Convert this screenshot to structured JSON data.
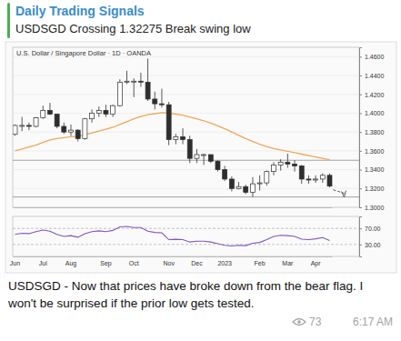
{
  "post": {
    "channel": "Daily Trading Signals",
    "headline": "USDSGD Crossing 1.32275 Break swing low",
    "caption": [
      "USDSGD - Now that prices have broke down from the bear flag. I",
      "won't be surprised if the prior low gets tested."
    ],
    "views": 73,
    "time": "6:17 AM"
  },
  "chart_data": [
    {
      "type": "candlestick",
      "title": "U.S. Dollar / Singapore Dollar · 1D · OANDA",
      "categories": [
        "Jun",
        null,
        null,
        null,
        "Jul",
        null,
        null,
        null,
        "Aug",
        null,
        null,
        null,
        null,
        "Sep",
        null,
        null,
        null,
        "Oct",
        null,
        null,
        null,
        null,
        "Nov",
        null,
        null,
        null,
        "Dec",
        null,
        null,
        null,
        "2023",
        null,
        null,
        null,
        null,
        "Feb",
        null,
        null,
        null,
        "Mar",
        null,
        null,
        null,
        "Apr",
        null,
        null
      ],
      "open": [
        1.3775,
        1.387,
        1.387,
        1.386,
        1.395,
        1.403,
        1.399,
        1.386,
        1.38,
        1.382,
        1.373,
        1.394,
        1.4,
        1.403,
        1.399,
        1.408,
        1.433,
        1.434,
        1.434,
        1.433,
        1.415,
        1.41,
        1.409,
        1.372,
        1.375,
        1.372,
        1.352,
        1.356,
        1.356,
        1.349,
        1.34,
        1.33,
        1.32,
        1.322,
        1.316,
        1.325,
        1.326,
        1.338,
        1.345,
        1.348,
        1.346,
        1.344,
        1.33,
        1.329,
        1.33,
        1.334
      ],
      "high": [
        1.388,
        1.396,
        1.39,
        1.396,
        1.408,
        1.411,
        1.399,
        1.39,
        1.388,
        1.383,
        1.395,
        1.404,
        1.407,
        1.409,
        1.409,
        1.436,
        1.445,
        1.437,
        1.443,
        1.458,
        1.423,
        1.426,
        1.412,
        1.378,
        1.384,
        1.376,
        1.362,
        1.357,
        1.356,
        1.35,
        1.344,
        1.333,
        1.327,
        1.324,
        1.332,
        1.334,
        1.339,
        1.348,
        1.351,
        1.357,
        1.35,
        1.345,
        1.334,
        1.334,
        1.336,
        1.336
      ],
      "low": [
        1.376,
        1.381,
        1.382,
        1.385,
        1.394,
        1.398,
        1.384,
        1.378,
        1.376,
        1.37,
        1.372,
        1.39,
        1.396,
        1.396,
        1.396,
        1.407,
        1.431,
        1.417,
        1.428,
        1.413,
        1.404,
        1.406,
        1.366,
        1.367,
        1.367,
        1.347,
        1.347,
        1.345,
        1.347,
        1.338,
        1.328,
        1.317,
        1.319,
        1.314,
        1.311,
        1.318,
        1.323,
        1.334,
        1.339,
        1.342,
        1.338,
        1.325,
        1.325,
        1.326,
        1.326,
        1.321
      ],
      "close": [
        1.387,
        1.387,
        1.386,
        1.395,
        1.403,
        1.399,
        1.386,
        1.38,
        1.382,
        1.373,
        1.394,
        1.4,
        1.403,
        1.399,
        1.408,
        1.433,
        1.434,
        1.434,
        1.433,
        1.415,
        1.41,
        1.409,
        1.372,
        1.375,
        1.372,
        1.352,
        1.356,
        1.356,
        1.349,
        1.34,
        1.33,
        1.32,
        1.322,
        1.316,
        1.325,
        1.326,
        1.338,
        1.345,
        1.348,
        1.346,
        1.344,
        1.33,
        1.329,
        1.33,
        1.334,
        1.3225
      ],
      "color": "#2e2e2e",
      "series": [
        {
          "type": "line",
          "color": "#f2a65a",
          "values": [
            1.36,
            1.362,
            1.364,
            1.366,
            1.369,
            1.3715,
            1.373,
            1.374,
            1.375,
            1.3755,
            1.377,
            1.379,
            1.381,
            1.383,
            1.385,
            1.388,
            1.391,
            1.394,
            1.3965,
            1.3985,
            1.3995,
            1.4005,
            1.4,
            1.399,
            1.398,
            1.396,
            1.394,
            1.392,
            1.3895,
            1.3865,
            1.3835,
            1.38,
            1.3765,
            1.373,
            1.37,
            1.367,
            1.3645,
            1.3625,
            1.361,
            1.3595,
            1.358,
            1.3565,
            1.355,
            1.3535,
            1.352,
            1.3505
          ]
        }
      ],
      "levels": [
        1.35,
        1.311
      ],
      "ylim": [
        1.3,
        1.47
      ],
      "yticks": [
        {
          "value": 1.3,
          "label": "1.3000"
        },
        {
          "value": 1.32,
          "label": "1.3200"
        },
        {
          "value": 1.34,
          "label": "1.3400"
        },
        {
          "value": 1.36,
          "label": "1.3600"
        },
        {
          "value": 1.38,
          "label": "1.3800"
        },
        {
          "value": 1.4,
          "label": "1.4000"
        },
        {
          "value": 1.42,
          "label": "1.4200"
        },
        {
          "value": 1.44,
          "label": "1.4400"
        },
        {
          "value": 1.46,
          "label": "1.4600"
        }
      ],
      "grid": true,
      "tick_labels": "y"
    },
    {
      "type": "line",
      "categories": [
        "Jun",
        null,
        null,
        null,
        "Jul",
        null,
        null,
        null,
        "Aug",
        null,
        null,
        null,
        null,
        "Sep",
        null,
        null,
        null,
        "Oct",
        null,
        null,
        null,
        null,
        "Nov",
        null,
        null,
        null,
        "Dec",
        null,
        null,
        null,
        "2023",
        null,
        null,
        null,
        null,
        "Feb",
        null,
        null,
        null,
        "Mar",
        null,
        null,
        null,
        "Apr",
        null,
        null
      ],
      "series": [
        {
          "color": "#7e57c2",
          "values": [
            55,
            58,
            57,
            62,
            66,
            63,
            55,
            50,
            52,
            48,
            57,
            62,
            64,
            62,
            65,
            74,
            75,
            72,
            72,
            63,
            60,
            59,
            42,
            43,
            42,
            36,
            38,
            38,
            36,
            32,
            28,
            26,
            28,
            27,
            33,
            35,
            42,
            50,
            53,
            52,
            50,
            43,
            42,
            44,
            47,
            40
          ]
        }
      ],
      "ylim": [
        0,
        100
      ],
      "yticks": [
        {
          "value": 30,
          "label": "30.00"
        },
        {
          "value": 70,
          "label": "70.00"
        }
      ],
      "grid": true
    }
  ]
}
